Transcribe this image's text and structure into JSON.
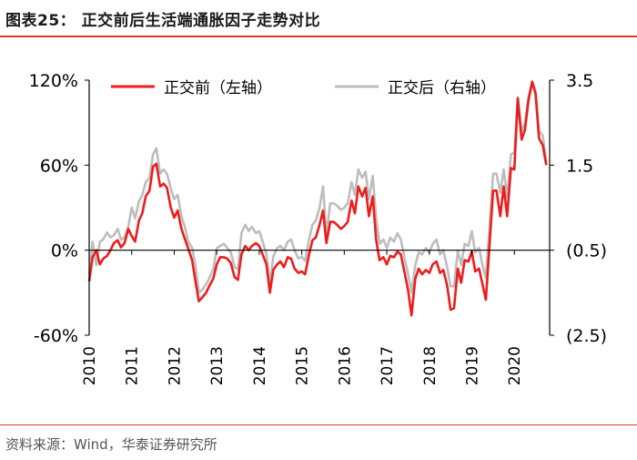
{
  "figure": {
    "title": "图表25：    正交前后生活端通胀因子走势对比",
    "source": "资料来源：Wind，华泰证券研究所"
  },
  "colors": {
    "accent": "#e8392d",
    "series_before": "#ee1c1c",
    "series_after": "#bdbdbd",
    "axis": "#000000"
  },
  "chart_data": {
    "type": "line",
    "title": "",
    "legend": {
      "placement": "top",
      "entries": [
        "正交前（左轴）",
        "正交后（右轴）"
      ]
    },
    "grid": false,
    "left_axis": {
      "ylim": [
        -0.6,
        1.2
      ],
      "ticks": [
        -0.6,
        0,
        0.6,
        1.2
      ],
      "tick_labels": [
        "-60%",
        "0%",
        "60%",
        "120%"
      ]
    },
    "right_axis": {
      "ylim": [
        -2.5,
        3.5
      ],
      "ticks": [
        3.5,
        1.5,
        -0.5,
        -2.5
      ],
      "tick_labels": [
        "3.5",
        "1.5",
        "(0.5)",
        "(2.5)"
      ]
    },
    "x_axis": {
      "range": [
        2010.0,
        2020.83
      ],
      "ticks": [
        2010,
        2011,
        2012,
        2013,
        2014,
        2015,
        2016,
        2017,
        2018,
        2019,
        2020
      ],
      "tick_labels": [
        "2010",
        "2011",
        "2012",
        "2013",
        "2014",
        "2015",
        "2016",
        "2017",
        "2018",
        "2019",
        "2020"
      ]
    },
    "series": [
      {
        "name": "正交前（左轴）",
        "axis": "left",
        "points": [
          [
            2010.0,
            -0.22
          ],
          [
            2010.08,
            -0.05
          ],
          [
            2010.17,
            0.0
          ],
          [
            2010.25,
            -0.1
          ],
          [
            2010.33,
            -0.06
          ],
          [
            2010.42,
            -0.04
          ],
          [
            2010.5,
            0.0
          ],
          [
            2010.58,
            0.05
          ],
          [
            2010.67,
            0.07
          ],
          [
            2010.75,
            0.02
          ],
          [
            2010.83,
            0.05
          ],
          [
            2010.92,
            0.15
          ],
          [
            2011.0,
            0.1
          ],
          [
            2011.08,
            0.06
          ],
          [
            2011.17,
            0.21
          ],
          [
            2011.25,
            0.26
          ],
          [
            2011.33,
            0.38
          ],
          [
            2011.42,
            0.42
          ],
          [
            2011.5,
            0.59
          ],
          [
            2011.58,
            0.61
          ],
          [
            2011.67,
            0.45
          ],
          [
            2011.75,
            0.47
          ],
          [
            2011.83,
            0.44
          ],
          [
            2011.92,
            0.3
          ],
          [
            2012.0,
            0.23
          ],
          [
            2012.08,
            0.28
          ],
          [
            2012.17,
            0.15
          ],
          [
            2012.25,
            0.08
          ],
          [
            2012.33,
            0.01
          ],
          [
            2012.42,
            -0.07
          ],
          [
            2012.5,
            -0.22
          ],
          [
            2012.58,
            -0.36
          ],
          [
            2012.67,
            -0.33
          ],
          [
            2012.75,
            -0.3
          ],
          [
            2012.83,
            -0.25
          ],
          [
            2012.92,
            -0.2
          ],
          [
            2013.0,
            -0.1
          ],
          [
            2013.08,
            -0.05
          ],
          [
            2013.17,
            -0.05
          ],
          [
            2013.25,
            -0.06
          ],
          [
            2013.33,
            -0.09
          ],
          [
            2013.42,
            -0.19
          ],
          [
            2013.5,
            -0.21
          ],
          [
            2013.58,
            -0.03
          ],
          [
            2013.67,
            0.03
          ],
          [
            2013.75,
            0.0
          ],
          [
            2013.83,
            0.03
          ],
          [
            2013.92,
            0.05
          ],
          [
            2014.0,
            0.03
          ],
          [
            2014.08,
            -0.03
          ],
          [
            2014.17,
            -0.1
          ],
          [
            2014.25,
            -0.3
          ],
          [
            2014.33,
            -0.14
          ],
          [
            2014.42,
            -0.1
          ],
          [
            2014.5,
            -0.08
          ],
          [
            2014.58,
            -0.12
          ],
          [
            2014.67,
            -0.05
          ],
          [
            2014.75,
            -0.06
          ],
          [
            2014.83,
            -0.13
          ],
          [
            2014.92,
            -0.16
          ],
          [
            2015.0,
            -0.15
          ],
          [
            2015.08,
            -0.17
          ],
          [
            2015.17,
            -0.03
          ],
          [
            2015.25,
            0.07
          ],
          [
            2015.33,
            0.09
          ],
          [
            2015.42,
            0.18
          ],
          [
            2015.5,
            0.28
          ],
          [
            2015.58,
            0.05
          ],
          [
            2015.67,
            0.2
          ],
          [
            2015.75,
            0.2
          ],
          [
            2015.83,
            0.18
          ],
          [
            2015.92,
            0.15
          ],
          [
            2016.0,
            0.17
          ],
          [
            2016.08,
            0.2
          ],
          [
            2016.17,
            0.35
          ],
          [
            2016.25,
            0.26
          ],
          [
            2016.33,
            0.45
          ],
          [
            2016.42,
            0.38
          ],
          [
            2016.5,
            0.44
          ],
          [
            2016.58,
            0.24
          ],
          [
            2016.67,
            0.38
          ],
          [
            2016.75,
            0.07
          ],
          [
            2016.83,
            -0.07
          ],
          [
            2016.92,
            -0.05
          ],
          [
            2017.0,
            -0.1
          ],
          [
            2017.08,
            -0.04
          ],
          [
            2017.17,
            -0.05
          ],
          [
            2017.25,
            -0.01
          ],
          [
            2017.33,
            -0.03
          ],
          [
            2017.42,
            -0.16
          ],
          [
            2017.5,
            -0.28
          ],
          [
            2017.58,
            -0.46
          ],
          [
            2017.67,
            -0.2
          ],
          [
            2017.75,
            -0.13
          ],
          [
            2017.83,
            -0.17
          ],
          [
            2017.92,
            -0.14
          ],
          [
            2018.0,
            -0.16
          ],
          [
            2018.08,
            -0.1
          ],
          [
            2018.17,
            -0.08
          ],
          [
            2018.25,
            -0.16
          ],
          [
            2018.33,
            -0.14
          ],
          [
            2018.42,
            -0.25
          ],
          [
            2018.5,
            -0.42
          ],
          [
            2018.58,
            -0.41
          ],
          [
            2018.67,
            -0.13
          ],
          [
            2018.75,
            -0.23
          ],
          [
            2018.83,
            -0.07
          ],
          [
            2018.92,
            -0.08
          ],
          [
            2019.0,
            -0.01
          ],
          [
            2019.08,
            -0.15
          ],
          [
            2019.17,
            -0.13
          ],
          [
            2019.25,
            -0.24
          ],
          [
            2019.33,
            -0.35
          ],
          [
            2019.42,
            0.05
          ],
          [
            2019.5,
            0.42
          ],
          [
            2019.58,
            0.42
          ],
          [
            2019.67,
            0.24
          ],
          [
            2019.75,
            0.45
          ],
          [
            2019.83,
            0.24
          ],
          [
            2019.92,
            0.58
          ],
          [
            2020.0,
            0.57
          ],
          [
            2020.08,
            1.07
          ],
          [
            2020.17,
            0.78
          ],
          [
            2020.25,
            0.85
          ],
          [
            2020.33,
            1.05
          ],
          [
            2020.42,
            1.19
          ],
          [
            2020.5,
            1.1
          ],
          [
            2020.58,
            0.79
          ],
          [
            2020.67,
            0.74
          ],
          [
            2020.75,
            0.6
          ]
        ]
      },
      {
        "name": "正交后（右轴）",
        "axis": "right",
        "points": [
          [
            2010.0,
            -1.1
          ],
          [
            2010.08,
            -0.3
          ],
          [
            2010.17,
            -0.85
          ],
          [
            2010.25,
            -0.3
          ],
          [
            2010.33,
            -0.25
          ],
          [
            2010.42,
            -0.08
          ],
          [
            2010.5,
            -0.2
          ],
          [
            2010.58,
            -0.15
          ],
          [
            2010.67,
            0.0
          ],
          [
            2010.75,
            -0.25
          ],
          [
            2010.83,
            -0.2
          ],
          [
            2010.92,
            0.05
          ],
          [
            2011.0,
            0.5
          ],
          [
            2011.08,
            0.25
          ],
          [
            2011.17,
            0.65
          ],
          [
            2011.25,
            0.8
          ],
          [
            2011.33,
            1.1
          ],
          [
            2011.42,
            1.2
          ],
          [
            2011.5,
            1.75
          ],
          [
            2011.58,
            1.9
          ],
          [
            2011.67,
            1.3
          ],
          [
            2011.75,
            1.4
          ],
          [
            2011.83,
            1.3
          ],
          [
            2011.92,
            0.95
          ],
          [
            2012.0,
            0.7
          ],
          [
            2012.08,
            0.8
          ],
          [
            2012.17,
            0.3
          ],
          [
            2012.25,
            0.05
          ],
          [
            2012.33,
            -0.3
          ],
          [
            2012.42,
            -0.45
          ],
          [
            2012.5,
            -0.85
          ],
          [
            2012.58,
            -1.5
          ],
          [
            2012.67,
            -1.42
          ],
          [
            2012.75,
            -1.3
          ],
          [
            2012.83,
            -1.15
          ],
          [
            2012.92,
            -0.95
          ],
          [
            2013.0,
            -0.45
          ],
          [
            2013.08,
            -0.4
          ],
          [
            2013.17,
            -0.35
          ],
          [
            2013.25,
            -0.45
          ],
          [
            2013.33,
            -0.55
          ],
          [
            2013.42,
            -0.9
          ],
          [
            2013.5,
            -0.95
          ],
          [
            2013.58,
            -0.1
          ],
          [
            2013.67,
            0.1
          ],
          [
            2013.75,
            -0.05
          ],
          [
            2013.83,
            0.05
          ],
          [
            2013.92,
            -0.1
          ],
          [
            2014.0,
            -0.05
          ],
          [
            2014.08,
            -0.3
          ],
          [
            2014.17,
            -0.6
          ],
          [
            2014.25,
            -1.3
          ],
          [
            2014.33,
            -0.65
          ],
          [
            2014.42,
            -0.45
          ],
          [
            2014.5,
            -0.4
          ],
          [
            2014.58,
            -0.5
          ],
          [
            2014.67,
            -0.3
          ],
          [
            2014.75,
            -0.25
          ],
          [
            2014.83,
            -0.5
          ],
          [
            2014.92,
            -0.7
          ],
          [
            2015.0,
            -0.65
          ],
          [
            2015.08,
            -0.75
          ],
          [
            2015.17,
            -0.25
          ],
          [
            2015.25,
            0.1
          ],
          [
            2015.33,
            0.2
          ],
          [
            2015.42,
            0.5
          ],
          [
            2015.5,
            1.0
          ],
          [
            2015.58,
            -0.15
          ],
          [
            2015.67,
            0.6
          ],
          [
            2015.75,
            0.6
          ],
          [
            2015.83,
            0.55
          ],
          [
            2015.92,
            0.45
          ],
          [
            2016.0,
            0.5
          ],
          [
            2016.08,
            0.6
          ],
          [
            2016.17,
            1.1
          ],
          [
            2016.25,
            0.8
          ],
          [
            2016.33,
            1.4
          ],
          [
            2016.42,
            1.2
          ],
          [
            2016.5,
            1.35
          ],
          [
            2016.58,
            0.7
          ],
          [
            2016.67,
            1.25
          ],
          [
            2016.75,
            0.25
          ],
          [
            2016.83,
            -0.35
          ],
          [
            2016.92,
            -0.25
          ],
          [
            2017.0,
            -0.45
          ],
          [
            2017.08,
            -0.2
          ],
          [
            2017.17,
            -0.3
          ],
          [
            2017.25,
            -0.1
          ],
          [
            2017.33,
            -0.25
          ],
          [
            2017.42,
            -0.7
          ],
          [
            2017.5,
            -1.05
          ],
          [
            2017.58,
            -1.5
          ],
          [
            2017.67,
            -0.85
          ],
          [
            2017.75,
            -0.55
          ],
          [
            2017.83,
            -0.6
          ],
          [
            2017.92,
            -0.45
          ],
          [
            2018.0,
            -0.55
          ],
          [
            2018.08,
            -0.35
          ],
          [
            2018.17,
            -0.25
          ],
          [
            2018.25,
            -0.6
          ],
          [
            2018.33,
            -0.5
          ],
          [
            2018.42,
            -0.9
          ],
          [
            2018.5,
            -1.35
          ],
          [
            2018.58,
            -1.35
          ],
          [
            2018.67,
            -0.5
          ],
          [
            2018.75,
            -0.85
          ],
          [
            2018.83,
            -0.35
          ],
          [
            2018.92,
            -0.4
          ],
          [
            2019.0,
            -0.05
          ],
          [
            2019.08,
            -0.55
          ],
          [
            2019.17,
            -0.45
          ],
          [
            2019.25,
            -0.85
          ],
          [
            2019.33,
            -1.15
          ],
          [
            2019.42,
            0.1
          ],
          [
            2019.5,
            1.3
          ],
          [
            2019.58,
            1.3
          ],
          [
            2019.67,
            0.85
          ],
          [
            2019.75,
            1.4
          ],
          [
            2019.83,
            0.75
          ],
          [
            2019.92,
            1.75
          ],
          [
            2020.0,
            1.8
          ],
          [
            2020.08,
            3.1
          ],
          [
            2020.17,
            2.3
          ],
          [
            2020.25,
            2.5
          ],
          [
            2020.33,
            3.1
          ],
          [
            2020.42,
            3.45
          ],
          [
            2020.5,
            3.25
          ],
          [
            2020.58,
            2.3
          ],
          [
            2020.67,
            2.2
          ],
          [
            2020.75,
            1.55
          ]
        ]
      }
    ]
  }
}
